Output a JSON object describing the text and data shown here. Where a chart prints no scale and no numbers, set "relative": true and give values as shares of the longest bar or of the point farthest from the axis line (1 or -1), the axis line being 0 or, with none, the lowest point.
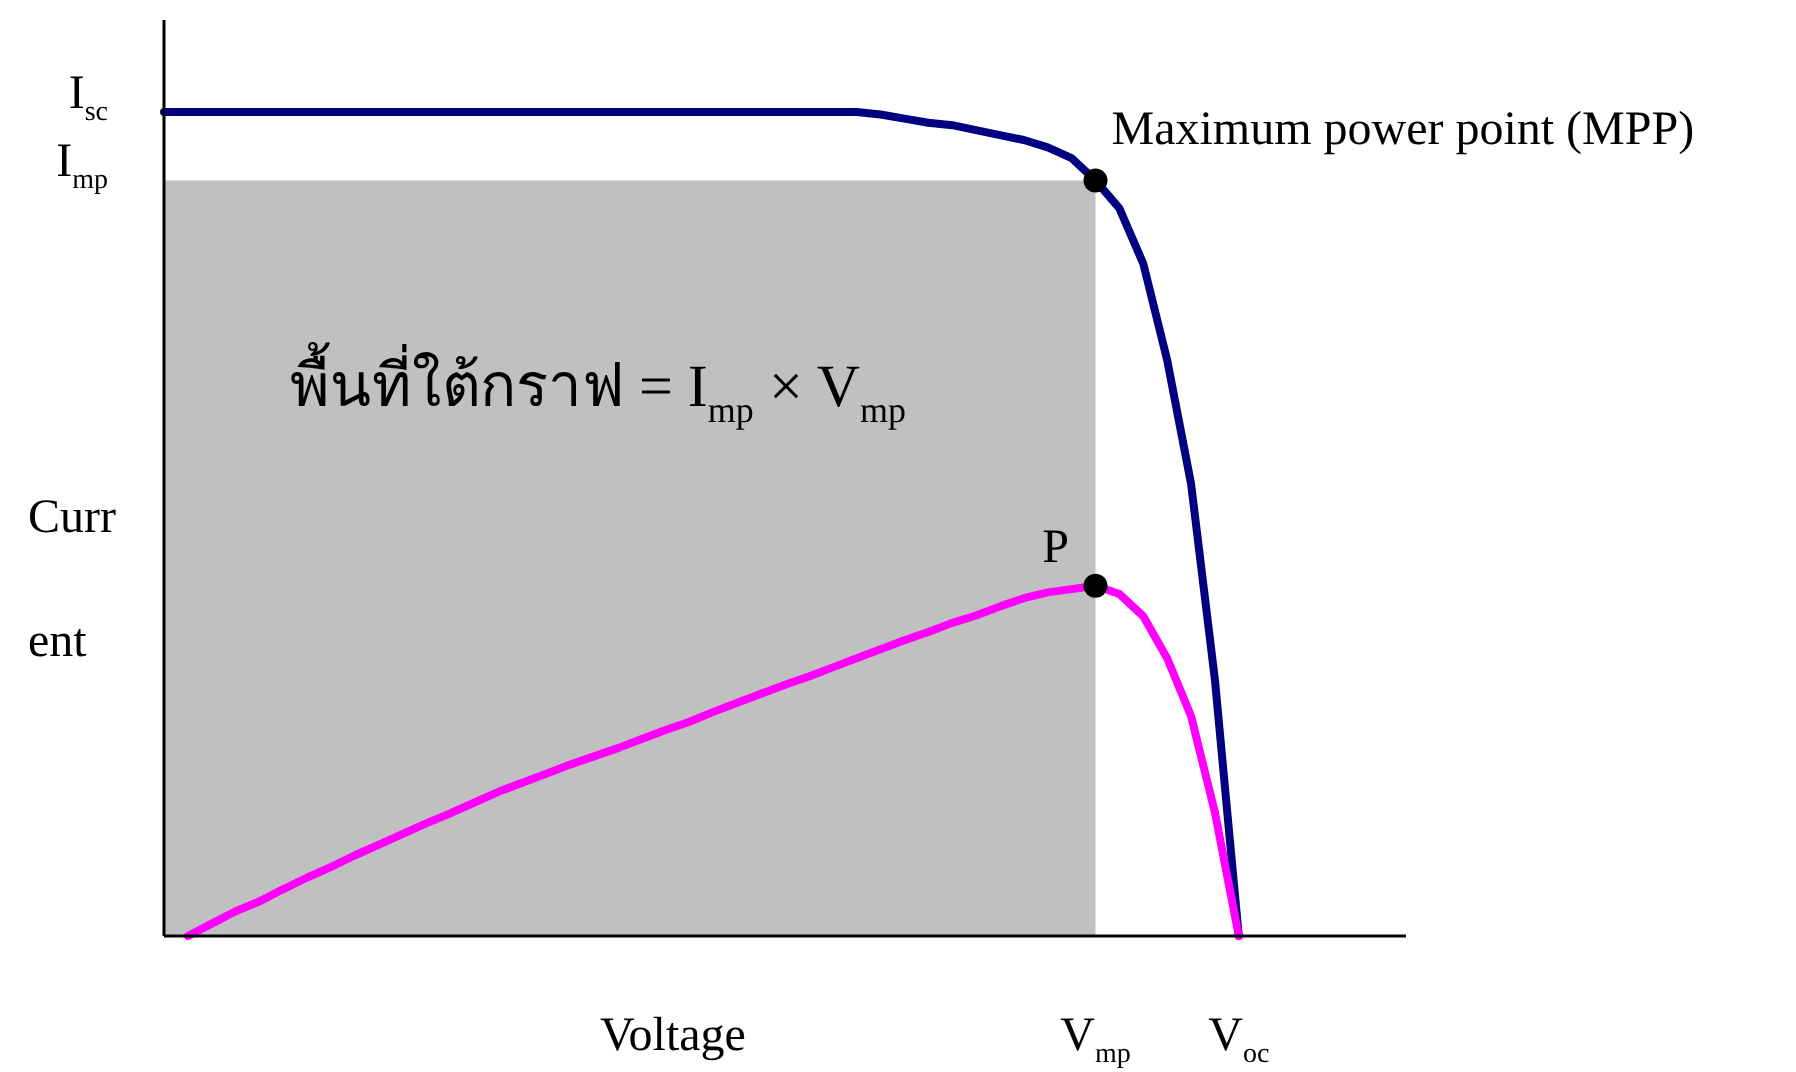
{
  "chart_data": {
    "type": "line",
    "xlabel": "Voltage",
    "ylabel": "Current",
    "relative": true,
    "categories": [
      null,
      null,
      null,
      null,
      null,
      null,
      null,
      null,
      null,
      null,
      null,
      null,
      null,
      null,
      null,
      null,
      null,
      null,
      null,
      null,
      null,
      null,
      null,
      null,
      null,
      null,
      null,
      null,
      null,
      null,
      null,
      null,
      null,
      null,
      null,
      null,
      null,
      null,
      null,
      "V$_{mp}$",
      null,
      null,
      null,
      null,
      null,
      "V$_{oc}$",
      null,
      null,
      null,
      null,
      null,
      null,
      null
    ],
    "series": [
      {
        "type": "area",
        "color": "#c0c0c0",
        "values": [
          0.917,
          0.917,
          0.917,
          0.917,
          0.917,
          0.917,
          0.917,
          0.917,
          0.917,
          0.917,
          0.917,
          0.917,
          0.917,
          0.917,
          0.917,
          0.917,
          0.917,
          0.917,
          0.917,
          0.917,
          0.917,
          0.917,
          0.917,
          0.917,
          0.917,
          0.917,
          0.917,
          0.917,
          0.917,
          0.917,
          0.917,
          0.917,
          0.917,
          0.917,
          0.917,
          0.917,
          0.917,
          0.917,
          0.917,
          0.917,
          null,
          null,
          null,
          null,
          null,
          null,
          null,
          null,
          null,
          null,
          null,
          null,
          null
        ]
      },
      {
        "color": "#000080",
        "values": [
          1,
          1,
          1,
          1,
          1,
          1,
          1,
          1,
          1,
          1,
          1,
          1,
          1,
          1,
          1,
          1,
          1,
          1,
          1,
          1,
          1,
          1,
          1,
          1,
          1,
          1,
          1,
          1,
          1,
          1,
          0.997,
          0.992,
          0.987,
          0.984,
          0.978,
          0.972,
          0.966,
          0.957,
          0.944,
          0.917,
          0.883,
          0.816,
          0.699,
          0.549,
          0.311,
          0,
          null,
          null,
          null,
          null,
          null,
          null,
          null
        ]
      },
      {
        "color": "#ff00ff",
        "values": [
          null,
          0,
          0.015,
          0.03,
          0.042,
          0.057,
          0.071,
          0.084,
          0.098,
          0.111,
          0.124,
          0.137,
          0.149,
          0.162,
          0.175,
          0.186,
          0.197,
          0.208,
          0.218,
          0.228,
          0.239,
          0.25,
          0.26,
          0.272,
          0.283,
          0.294,
          0.305,
          0.315,
          0.326,
          0.337,
          0.348,
          0.359,
          0.369,
          0.38,
          0.389,
          0.4,
          0.41,
          0.417,
          0.421,
          0.425,
          0.415,
          0.388,
          0.337,
          0.267,
          0.15,
          0,
          null,
          null,
          null,
          null,
          null,
          null,
          null
        ]
      },
      {
        "type": "scatter",
        "color": "#000000",
        "marker": "circle",
        "x": [
          "V$_{mp}$",
          "V$_{mp}$"
        ],
        "values": [
          0.917,
          0.425
        ]
      }
    ],
    "annotations": [
      "I$_{sc}$",
      "I$_{mp}$",
      {
        "text": "Maximum power point (MPP)",
        "x": "V$_{mp}$",
        "y": 0.917
      },
      {
        "text": "P",
        "x": "V$_{mp}$",
        "y": 0.425
      },
      "พื้นที่ใต้กราฟ = I$_{mp}$ × V$_{mp}$"
    ]
  }
}
